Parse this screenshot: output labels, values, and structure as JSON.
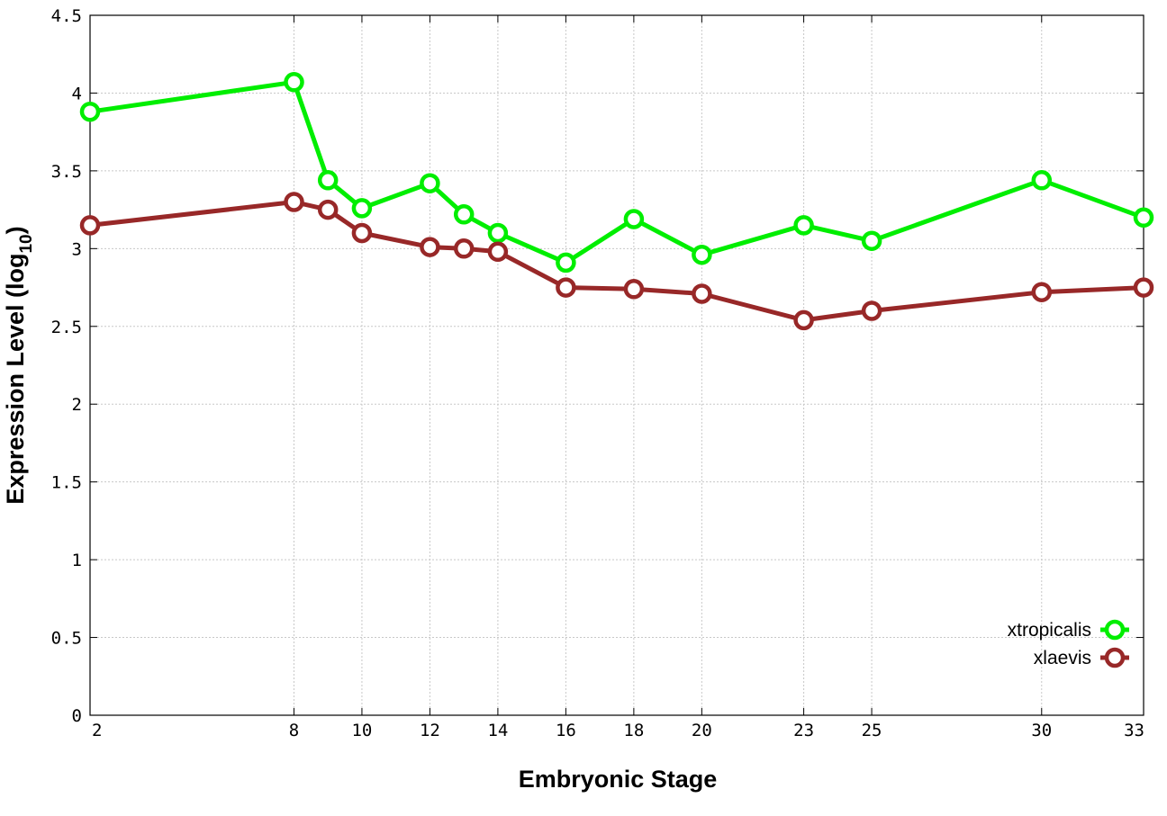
{
  "chart_data": {
    "type": "line",
    "title": "",
    "xlabel": "Embryonic Stage",
    "ylabel_main": "Expression Level (log",
    "ylabel_sub": "10",
    "ylabel_close": ")",
    "x_ticks": [
      2,
      8,
      10,
      12,
      14,
      16,
      18,
      20,
      23,
      25,
      30,
      33
    ],
    "x_tick_labels": [
      "2",
      "8",
      "10",
      "12",
      "14",
      "16",
      "18",
      "20",
      "23",
      "25",
      "30",
      "33"
    ],
    "xlim": [
      2,
      33
    ],
    "y_ticks": [
      0,
      0.5,
      1,
      1.5,
      2,
      2.5,
      3,
      3.5,
      4,
      4.5
    ],
    "y_tick_labels": [
      "0",
      "0.5",
      "1",
      "1.5",
      "2",
      "2.5",
      "3",
      "3.5",
      "4",
      "4.5"
    ],
    "ylim": [
      0,
      4.5
    ],
    "grid": true,
    "legend_position": "bottom-right",
    "series": [
      {
        "name": "xtropicalis",
        "color": "#00ee00",
        "marker": "open-circle",
        "x": [
          2,
          8,
          9,
          10,
          12,
          13,
          14,
          16,
          18,
          20,
          23,
          25,
          30,
          33
        ],
        "y": [
          3.88,
          4.07,
          3.44,
          3.26,
          3.42,
          3.22,
          3.1,
          2.91,
          3.19,
          2.96,
          3.15,
          3.05,
          3.44,
          3.2
        ]
      },
      {
        "name": "xlaevis",
        "color": "#982828",
        "marker": "open-circle",
        "x": [
          2,
          8,
          9,
          10,
          12,
          13,
          14,
          16,
          18,
          20,
          23,
          25,
          30,
          33
        ],
        "y": [
          3.15,
          3.3,
          3.25,
          3.1,
          3.01,
          3.0,
          2.98,
          2.75,
          2.74,
          2.71,
          2.54,
          2.6,
          2.72,
          2.75
        ]
      }
    ]
  }
}
